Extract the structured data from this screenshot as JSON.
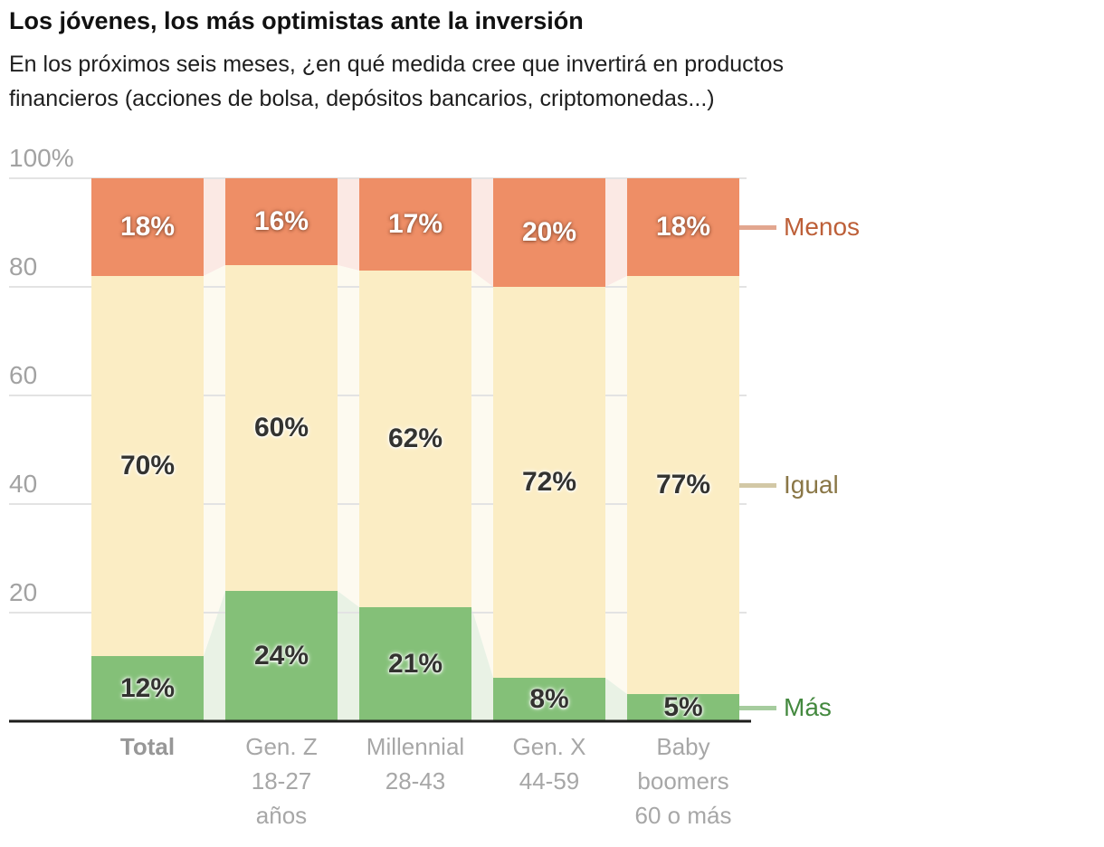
{
  "header": {
    "title": "Los jóvenes, los más optimistas ante la inversión",
    "subtitle": "En los próximos seis meses, ¿en qué medida cree que invertirá en productos financieros (acciones de bolsa, depósitos bancarios, criptomonedas...)"
  },
  "chart_data": {
    "type": "bar",
    "subtype": "stacked-percentage-columns-with-light-connector-areas",
    "categories": [
      [
        "Total"
      ],
      [
        "Gen. Z",
        "18-27",
        "años"
      ],
      [
        "Millennial",
        "28-43"
      ],
      [
        "Gen. X",
        "44-59"
      ],
      [
        "Baby",
        "boomers",
        "60 o más"
      ]
    ],
    "series": [
      {
        "name": "Menos",
        "values": [
          18,
          16,
          17,
          20,
          18
        ],
        "display": [
          "18%",
          "16%",
          "17%",
          "20%",
          "18%"
        ],
        "color": "#ee8e66",
        "light_color": "#fbe9e4",
        "legend_text_color": "#bd5f38",
        "legend_tick_color": "#e2a68f",
        "value_label_style": "on-dark"
      },
      {
        "name": "Igual",
        "values": [
          70,
          60,
          62,
          72,
          77
        ],
        "display": [
          "70%",
          "60%",
          "62%",
          "72%",
          "77%"
        ],
        "color": "#fbedc4",
        "light_color": "#fdfaf0",
        "legend_text_color": "#8a7747",
        "legend_tick_color": "#d2c8a6",
        "value_label_style": "on-light"
      },
      {
        "name": "Más",
        "values": [
          12,
          24,
          21,
          8,
          5
        ],
        "display": [
          "12%",
          "24%",
          "21%",
          "8%",
          "5%"
        ],
        "color": "#84c078",
        "light_color": "#e9f2e5",
        "legend_text_color": "#44893f",
        "legend_tick_color": "#a6cc9e",
        "value_label_style": "on-light"
      }
    ],
    "y_axis": {
      "ticks": [
        {
          "label": "100%",
          "value": 100
        },
        {
          "label": "80",
          "value": 80
        },
        {
          "label": "60",
          "value": 60
        },
        {
          "label": "40",
          "value": 40
        },
        {
          "label": "20",
          "value": 20
        }
      ],
      "ylim": [
        0,
        100
      ],
      "grid": true,
      "grid_color": "#e3e3e3"
    },
    "axis_line_color": "#1d1d1b",
    "tick_label_color": "#a2a2a2",
    "category_label_color": "#a7a7a7",
    "legend_position": "right"
  }
}
